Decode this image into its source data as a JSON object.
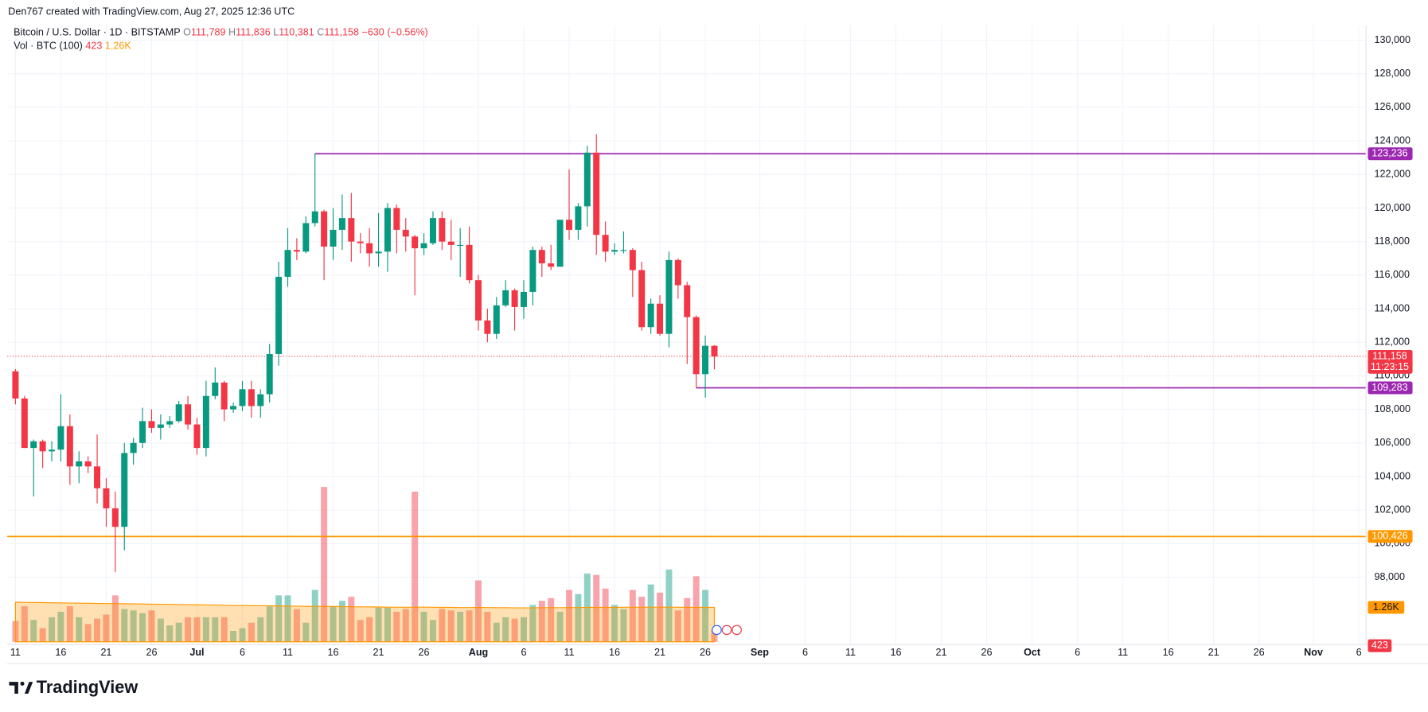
{
  "attribution": "Den767 created with TradingView.com, Aug 27, 2025 12:36 UTC",
  "brand": "TradingView",
  "chart_data": {
    "type": "candlestick",
    "title": "Bitcoin / U.S. Dollar · 1D · BITSTAMP",
    "ohlc_prefixes": [
      "O",
      "H",
      "L",
      "C"
    ],
    "ohlc_labels": [
      "111,789",
      "111,836",
      "110,381",
      "111,158"
    ],
    "change": -630,
    "change_label": "−630",
    "change_pct": -0.56,
    "change_pct_label": "(−0.56%)",
    "up_color": "#089981",
    "down_color": "#f23645",
    "x": [
      "06-11",
      "06-12",
      "06-13",
      "06-14",
      "06-15",
      "06-16",
      "06-17",
      "06-18",
      "06-19",
      "06-20",
      "06-21",
      "06-22",
      "06-23",
      "06-24",
      "06-25",
      "06-26",
      "06-27",
      "06-28",
      "06-29",
      "06-30",
      "07-01",
      "07-02",
      "07-03",
      "07-04",
      "07-05",
      "07-06",
      "07-07",
      "07-08",
      "07-09",
      "07-10",
      "07-11",
      "07-12",
      "07-13",
      "07-14",
      "07-15",
      "07-16",
      "07-17",
      "07-18",
      "07-19",
      "07-20",
      "07-21",
      "07-22",
      "07-23",
      "07-24",
      "07-25",
      "07-26",
      "07-27",
      "07-28",
      "07-29",
      "07-30",
      "07-31",
      "08-01",
      "08-02",
      "08-03",
      "08-04",
      "08-05",
      "08-06",
      "08-07",
      "08-08",
      "08-09",
      "08-10",
      "08-11",
      "08-12",
      "08-13",
      "08-14",
      "08-15",
      "08-16",
      "08-17",
      "08-18",
      "08-19",
      "08-20",
      "08-21",
      "08-22",
      "08-23",
      "08-24",
      "08-25",
      "08-26",
      "08-27"
    ],
    "open": [
      110270,
      108650,
      105700,
      106100,
      105500,
      105600,
      107000,
      104600,
      104900,
      104600,
      103300,
      102100,
      101000,
      105400,
      106000,
      107300,
      106900,
      107100,
      107300,
      108300,
      107100,
      105700,
      108800,
      109600,
      108000,
      108200,
      109200,
      108200,
      108900,
      111300,
      115900,
      117500,
      117400,
      119100,
      119800,
      117700,
      118700,
      119400,
      118000,
      117900,
      117300,
      117400,
      120000,
      118700,
      118300,
      117600,
      117900,
      119400,
      118000,
      117800,
      117800,
      115700,
      113300,
      112500,
      114200,
      115100,
      114100,
      115000,
      117500,
      116700,
      116500,
      119300,
      118700,
      120100,
      123300,
      118400,
      117400,
      117500,
      117500,
      116300,
      112900,
      114300,
      112500,
      116900,
      115400,
      113500,
      110100,
      111789
    ],
    "high": [
      110400,
      108800,
      106200,
      106200,
      106100,
      108900,
      107700,
      105500,
      105200,
      106500,
      103900,
      103100,
      106000,
      106300,
      108100,
      108000,
      107700,
      107600,
      108500,
      108800,
      107500,
      109700,
      110500,
      109700,
      108400,
      109700,
      109700,
      109200,
      111900,
      116800,
      118800,
      118200,
      119500,
      123236,
      119900,
      120000,
      120800,
      120900,
      118500,
      118800,
      119700,
      120300,
      120200,
      119400,
      118400,
      118500,
      119800,
      119800,
      119300,
      118800,
      118900,
      116000,
      114000,
      114700,
      115700,
      115200,
      115700,
      117700,
      117700,
      117800,
      119300,
      122300,
      120300,
      123700,
      124400,
      119200,
      117900,
      118600,
      117600,
      116800,
      114600,
      114800,
      117400,
      117000,
      115600,
      113600,
      112400,
      111836
    ],
    "low": [
      108300,
      105700,
      102800,
      104500,
      104900,
      104900,
      103500,
      103600,
      104200,
      102400,
      101000,
      98300,
      99600,
      104700,
      105700,
      106600,
      106200,
      106900,
      107200,
      106800,
      105300,
      105200,
      108600,
      107300,
      107800,
      107900,
      107500,
      107500,
      108400,
      110600,
      115300,
      116900,
      117300,
      118900,
      115700,
      116900,
      117500,
      116800,
      117300,
      116500,
      116500,
      116200,
      117300,
      117400,
      114800,
      117200,
      117800,
      117500,
      116900,
      115900,
      115500,
      112700,
      112000,
      112200,
      114100,
      112700,
      113400,
      114200,
      115900,
      116300,
      116500,
      118100,
      118100,
      118900,
      117200,
      116800,
      117200,
      117300,
      114700,
      112700,
      112500,
      112400,
      111700,
      114600,
      110700,
      109283,
      108700,
      110381
    ],
    "close": [
      108650,
      105700,
      106100,
      105500,
      105600,
      107000,
      104600,
      104900,
      104600,
      103300,
      102100,
      101000,
      105400,
      106000,
      107300,
      106900,
      107100,
      107300,
      108300,
      107100,
      105700,
      108800,
      109600,
      108000,
      108200,
      109200,
      108200,
      108900,
      111300,
      115900,
      117500,
      117400,
      119100,
      119800,
      117700,
      118700,
      119400,
      118000,
      117900,
      117300,
      117400,
      120000,
      118700,
      118300,
      117600,
      117900,
      119400,
      118000,
      117800,
      117800,
      115700,
      113300,
      112500,
      114200,
      115100,
      114100,
      115000,
      117500,
      116700,
      116500,
      119300,
      118700,
      120100,
      123300,
      118400,
      117400,
      117500,
      117500,
      116300,
      112900,
      114300,
      112500,
      116900,
      115400,
      113500,
      110100,
      111789,
      111158
    ],
    "ylim": [
      94150,
      130870
    ],
    "yticks": [
      {
        "value": 98000,
        "label": "98,000"
      },
      {
        "value": 100000,
        "label": "100,000"
      },
      {
        "value": 102000,
        "label": "102,000"
      },
      {
        "value": 104000,
        "label": "104,000"
      },
      {
        "value": 106000,
        "label": "106,000"
      },
      {
        "value": 108000,
        "label": "108,000"
      },
      {
        "value": 110000,
        "label": "110,000"
      },
      {
        "value": 112000,
        "label": "112,000"
      },
      {
        "value": 114000,
        "label": "114,000"
      },
      {
        "value": 116000,
        "label": "116,000"
      },
      {
        "value": 118000,
        "label": "118,000"
      },
      {
        "value": 120000,
        "label": "120,000"
      },
      {
        "value": 122000,
        "label": "122,000"
      },
      {
        "value": 124000,
        "label": "124,000"
      },
      {
        "value": 126000,
        "label": "126,000"
      },
      {
        "value": 128000,
        "label": "128,000"
      },
      {
        "value": 130000,
        "label": "130,000"
      }
    ],
    "xlim": [
      "06-10",
      "11-07"
    ],
    "xticks": [
      {
        "value": "06-11",
        "label": "11"
      },
      {
        "value": "06-16",
        "label": "16"
      },
      {
        "value": "06-21",
        "label": "21"
      },
      {
        "value": "06-26",
        "label": "26"
      },
      {
        "value": "07-01",
        "label": "Jul"
      },
      {
        "value": "07-06",
        "label": "6"
      },
      {
        "value": "07-11",
        "label": "11"
      },
      {
        "value": "07-16",
        "label": "16"
      },
      {
        "value": "07-21",
        "label": "21"
      },
      {
        "value": "07-26",
        "label": "26"
      },
      {
        "value": "08-01",
        "label": "Aug"
      },
      {
        "value": "08-06",
        "label": "6"
      },
      {
        "value": "08-11",
        "label": "11"
      },
      {
        "value": "08-16",
        "label": "16"
      },
      {
        "value": "08-21",
        "label": "21"
      },
      {
        "value": "08-26",
        "label": "26"
      },
      {
        "value": "09-01",
        "label": "Sep"
      },
      {
        "value": "09-06",
        "label": "6"
      },
      {
        "value": "09-11",
        "label": "11"
      },
      {
        "value": "09-16",
        "label": "16"
      },
      {
        "value": "09-21",
        "label": "21"
      },
      {
        "value": "09-26",
        "label": "26"
      },
      {
        "value": "10-01",
        "label": "Oct"
      },
      {
        "value": "10-06",
        "label": "6"
      },
      {
        "value": "10-11",
        "label": "11"
      },
      {
        "value": "10-16",
        "label": "16"
      },
      {
        "value": "10-21",
        "label": "21"
      },
      {
        "value": "10-26",
        "label": "26"
      },
      {
        "value": "11-01",
        "label": "Nov"
      },
      {
        "value": "11-06",
        "label": "6"
      }
    ],
    "grid": true,
    "volume": {
      "name": "Vol · BTC (100)",
      "up_color": "rgba(8,153,129,0.45)",
      "down_color": "rgba(242,54,69,0.45)",
      "values": [
        760,
        1300,
        800,
        500,
        900,
        1100,
        1300,
        900,
        650,
        850,
        1000,
        1700,
        1200,
        1150,
        1050,
        1150,
        850,
        600,
        700,
        900,
        900,
        900,
        900,
        900,
        400,
        500,
        700,
        900,
        1300,
        1700,
        1700,
        1200,
        700,
        1900,
        5670,
        1300,
        1500,
        1650,
        800,
        900,
        1250,
        1250,
        1100,
        1200,
        5500,
        1100,
        800,
        1200,
        1150,
        1100,
        1150,
        2250,
        1100,
        700,
        900,
        850,
        900,
        1350,
        1500,
        1600,
        1100,
        1900,
        1750,
        2500,
        2450,
        1950,
        1350,
        1200,
        1900,
        1650,
        2100,
        1800,
        2650,
        1150,
        1600,
        2400,
        1900,
        423
      ],
      "last_label": "423",
      "ylim": [
        0,
        5900
      ]
    },
    "volume_ma": {
      "color": "#ff9800",
      "values": [
        1450,
        1445,
        1440,
        1435,
        1430,
        1425,
        1420,
        1415,
        1410,
        1405,
        1400,
        1400,
        1395,
        1390,
        1385,
        1380,
        1375,
        1370,
        1365,
        1360,
        1355,
        1350,
        1345,
        1340,
        1335,
        1330,
        1325,
        1320,
        1320,
        1315,
        1310,
        1305,
        1300,
        1300,
        1300,
        1295,
        1290,
        1285,
        1280,
        1280,
        1275,
        1270,
        1265,
        1265,
        1270,
        1270,
        1265,
        1260,
        1260,
        1255,
        1255,
        1260,
        1255,
        1250,
        1250,
        1245,
        1245,
        1245,
        1250,
        1250,
        1250,
        1255,
        1255,
        1260,
        1260,
        1260,
        1260,
        1265,
        1265,
        1265,
        1270,
        1270,
        1270,
        1265,
        1265,
        1260,
        1260,
        1260
      ],
      "last_label": "1.26K"
    },
    "levels": [
      {
        "value": 123236,
        "label": "123,236",
        "color": "#9c27b0",
        "start": "07-14"
      },
      {
        "value": 109283,
        "label": "109,283",
        "color": "#9c27b0",
        "start": "08-25"
      },
      {
        "value": 100426,
        "label": "100,426",
        "color": "#ff9800"
      }
    ],
    "last_price": {
      "value": 111158,
      "label": "111,158",
      "countdown": "11:23:15",
      "color": "#f23645"
    }
  }
}
